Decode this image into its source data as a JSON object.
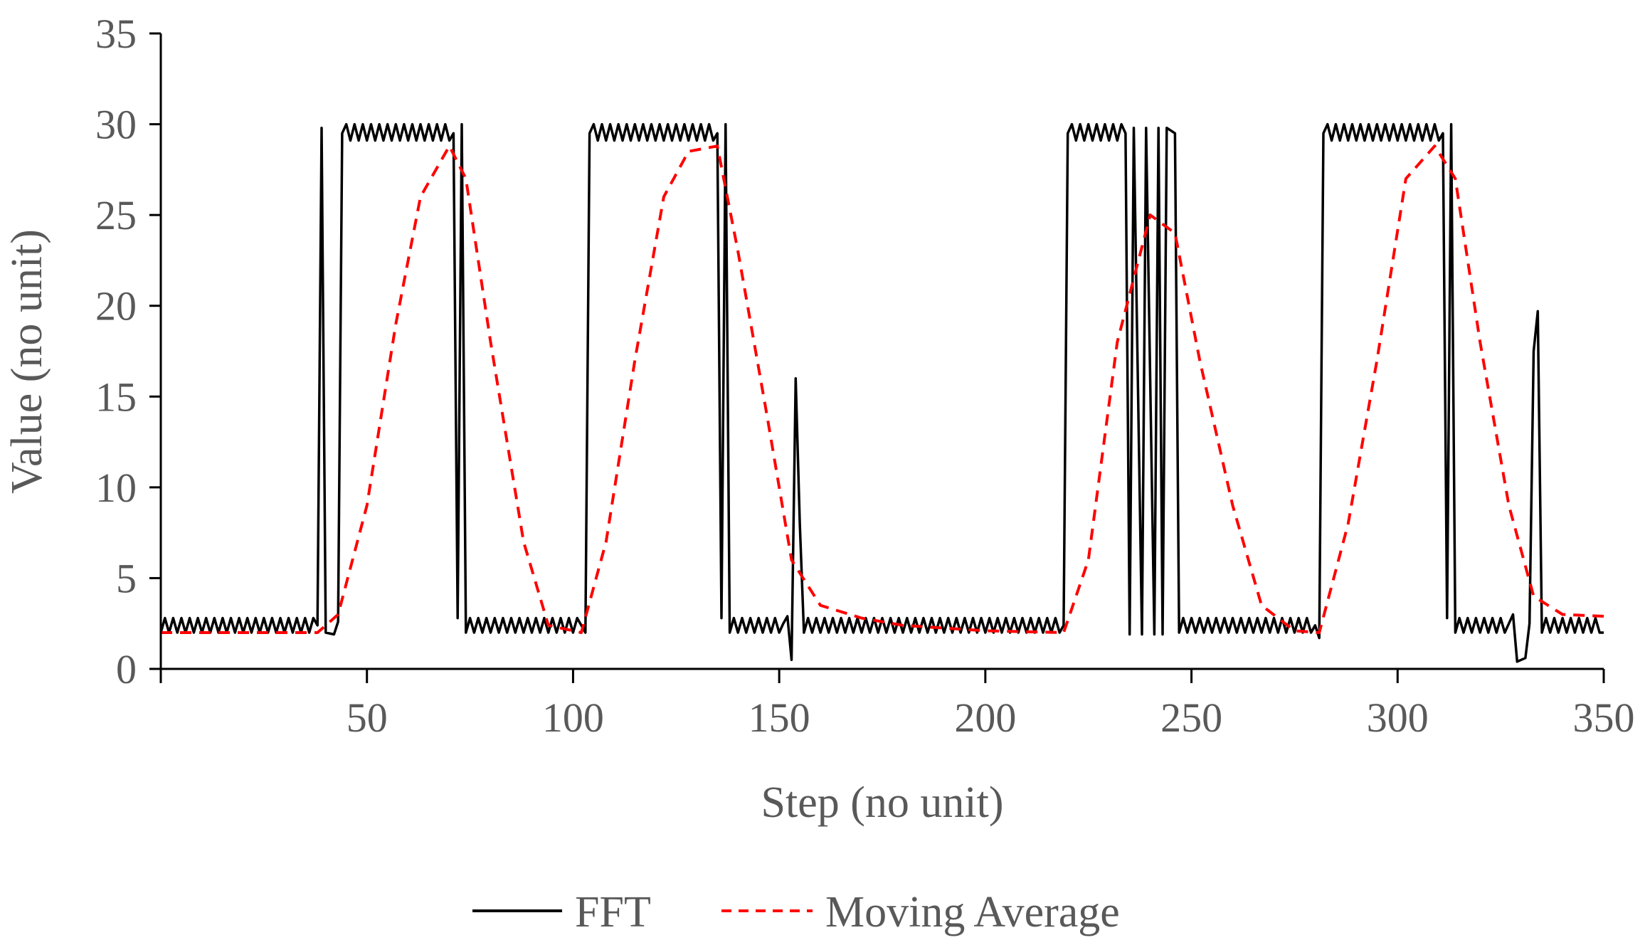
{
  "chart_data": {
    "type": "line",
    "title": "",
    "xlabel": "Step (no unit)",
    "ylabel": "Value (no unit)",
    "xlim": [
      0,
      350
    ],
    "ylim": [
      0,
      35
    ],
    "x_ticks": [
      50,
      100,
      150,
      200,
      250,
      300,
      350
    ],
    "y_ticks": [
      0,
      5,
      10,
      15,
      20,
      25,
      30,
      35
    ],
    "grid": false,
    "legend_position": "bottom",
    "series": [
      {
        "name": "FFT",
        "color": "#000000",
        "style": "solid",
        "points": [
          [
            0,
            2.0
          ],
          [
            38,
            2.4
          ],
          [
            39,
            29.8
          ],
          [
            40,
            2.0
          ],
          [
            42,
            1.9
          ],
          [
            43,
            2.6
          ],
          [
            44,
            29.5
          ],
          [
            71,
            29.5
          ],
          [
            72,
            2.8
          ],
          [
            73,
            30.0
          ],
          [
            74,
            2.0
          ],
          [
            102,
            2.4
          ],
          [
            103,
            2.0
          ],
          [
            104,
            29.5
          ],
          [
            135,
            29.5
          ],
          [
            136,
            2.8
          ],
          [
            137,
            30.0
          ],
          [
            138,
            2.0
          ],
          [
            151,
            2.5
          ],
          [
            152,
            2.9
          ],
          [
            153,
            0.5
          ],
          [
            154,
            16.0
          ],
          [
            155,
            8.0
          ],
          [
            156,
            2.0
          ],
          [
            219,
            2.4
          ],
          [
            220,
            29.5
          ],
          [
            234,
            29.5
          ],
          [
            235,
            1.9
          ],
          [
            236,
            29.8
          ],
          [
            238,
            1.9
          ],
          [
            239,
            29.8
          ],
          [
            241,
            1.9
          ],
          [
            242,
            29.8
          ],
          [
            243,
            1.9
          ],
          [
            244,
            29.8
          ],
          [
            246,
            29.5
          ],
          [
            247,
            2.0
          ],
          [
            280,
            2.4
          ],
          [
            281,
            1.7
          ],
          [
            282,
            29.5
          ],
          [
            311,
            29.5
          ],
          [
            312,
            2.8
          ],
          [
            313,
            30.0
          ],
          [
            314,
            2.0
          ],
          [
            327,
            2.5
          ],
          [
            328,
            3.0
          ],
          [
            329,
            0.4
          ],
          [
            331,
            0.6
          ],
          [
            332,
            2.5
          ],
          [
            333,
            17.5
          ],
          [
            334,
            19.7
          ],
          [
            335,
            2.0
          ],
          [
            350,
            2.0
          ]
        ]
      },
      {
        "name": "Moving Average",
        "color": "#ff0000",
        "style": "dashed",
        "points": [
          [
            0,
            2.0
          ],
          [
            38,
            2.0
          ],
          [
            43,
            3.0
          ],
          [
            50,
            9.0
          ],
          [
            57,
            19.0
          ],
          [
            63,
            26.0
          ],
          [
            70,
            28.8
          ],
          [
            74,
            27.0
          ],
          [
            80,
            18.0
          ],
          [
            88,
            7.0
          ],
          [
            94,
            2.4
          ],
          [
            102,
            2.0
          ],
          [
            108,
            7.0
          ],
          [
            115,
            17.0
          ],
          [
            122,
            26.0
          ],
          [
            128,
            28.5
          ],
          [
            135,
            28.8
          ],
          [
            140,
            23.0
          ],
          [
            147,
            14.0
          ],
          [
            153,
            6.0
          ],
          [
            160,
            3.5
          ],
          [
            170,
            2.8
          ],
          [
            180,
            2.4
          ],
          [
            200,
            2.1
          ],
          [
            219,
            2.0
          ],
          [
            225,
            6.0
          ],
          [
            232,
            18.0
          ],
          [
            240,
            25.0
          ],
          [
            246,
            24.0
          ],
          [
            252,
            17.0
          ],
          [
            260,
            9.0
          ],
          [
            267,
            3.5
          ],
          [
            275,
            2.1
          ],
          [
            281,
            2.0
          ],
          [
            288,
            8.0
          ],
          [
            295,
            17.0
          ],
          [
            302,
            27.0
          ],
          [
            309,
            28.8
          ],
          [
            314,
            27.0
          ],
          [
            320,
            18.0
          ],
          [
            327,
            9.0
          ],
          [
            333,
            4.0
          ],
          [
            340,
            3.0
          ],
          [
            350,
            2.9
          ]
        ]
      }
    ]
  }
}
